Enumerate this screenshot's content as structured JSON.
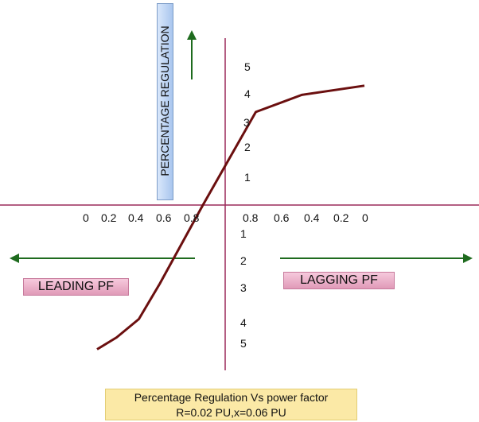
{
  "chart_data": {
    "type": "line",
    "title": "Percentage Regulation Vs power factor",
    "subtitle": "R=0.02 PU,x=0.06 PU",
    "ylabel": "PERCENTAGE REGULATION",
    "leading_label": "LEADING PF",
    "lagging_label": "LAGGING PF",
    "leading_pf_ticks": [
      "0",
      "0.2",
      "0.4",
      "0.6",
      "0.8"
    ],
    "lagging_pf_ticks": [
      "0.8",
      "0.6",
      "0.4",
      "0.2",
      "0"
    ],
    "positive_regulation_ticks": [
      "1",
      "2",
      "3",
      "4",
      "5"
    ],
    "negative_regulation_ticks": [
      "1",
      "2",
      "3",
      "4",
      "5"
    ],
    "series": [
      {
        "name": "Percentage Regulation",
        "color": "#6b0f0f",
        "points": [
          {
            "x": -0.92,
            "y": -5.5
          },
          {
            "x": -0.78,
            "y": -5.05
          },
          {
            "x": -0.62,
            "y": -4.35
          },
          {
            "x": -0.47,
            "y": -3.0
          },
          {
            "x": -0.16,
            "y": 0.0
          },
          {
            "x": 0.22,
            "y": 3.55
          },
          {
            "x": 0.55,
            "y": 4.2
          },
          {
            "x": 1.0,
            "y": 4.55
          }
        ]
      }
    ]
  },
  "colors": {
    "axis": "#9c2a5a",
    "arrow": "#1e6b1e",
    "curve": "#6b0f0f"
  }
}
